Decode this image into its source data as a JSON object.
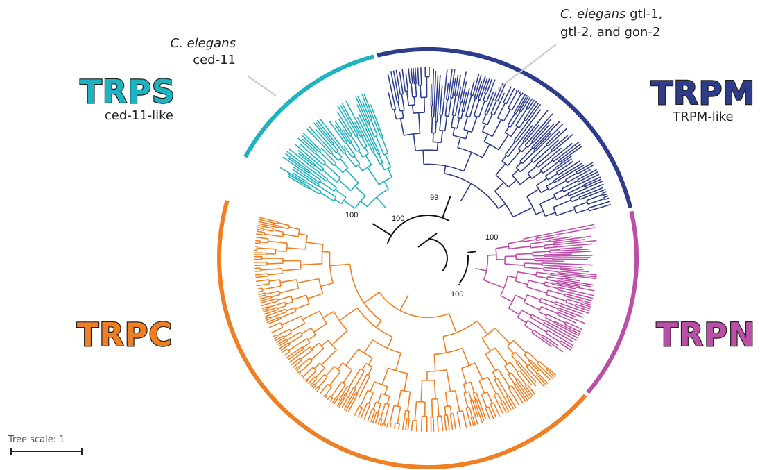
{
  "clades": [
    {
      "id": "trps",
      "name": "TRPS",
      "subtitle": "ced-11-like",
      "color": "#1fb2c0"
    },
    {
      "id": "trpm",
      "name": "TRPM",
      "subtitle": "TRPM-like",
      "color": "#2e3c8c"
    },
    {
      "id": "trpn",
      "name": "TRPN",
      "subtitle": "",
      "color": "#bb4fa8"
    },
    {
      "id": "trpc",
      "name": "TRPC",
      "subtitle": "",
      "color": "#ef7f22"
    }
  ],
  "annotations": {
    "ced11": {
      "species": "C. elegans",
      "gene": "ced-11"
    },
    "gtl": {
      "species": "C. elegans",
      "line1_rest": " gtl-1,",
      "line2": "gtl-2, and gon-2"
    }
  },
  "bootstrap": {
    "trps": "100",
    "trpm": "99",
    "inner": "100",
    "trpn": "100",
    "trpc": "100"
  },
  "scale": {
    "label": "Tree scale: 1"
  }
}
